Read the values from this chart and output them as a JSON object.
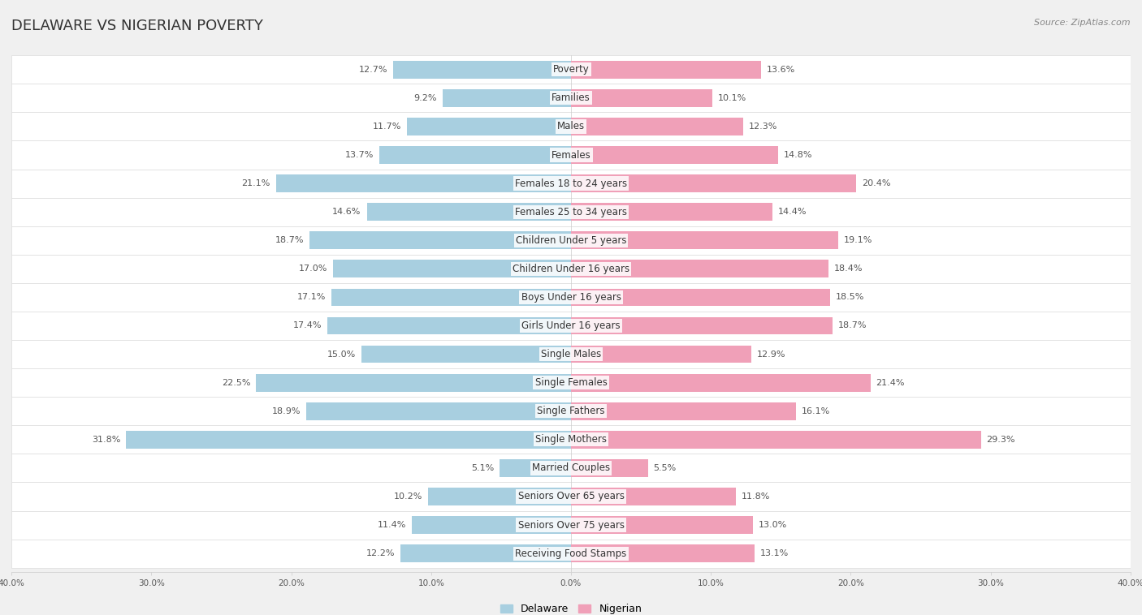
{
  "title": "DELAWARE VS NIGERIAN POVERTY",
  "source": "Source: ZipAtlas.com",
  "categories": [
    "Poverty",
    "Families",
    "Males",
    "Females",
    "Females 18 to 24 years",
    "Females 25 to 34 years",
    "Children Under 5 years",
    "Children Under 16 years",
    "Boys Under 16 years",
    "Girls Under 16 years",
    "Single Males",
    "Single Females",
    "Single Fathers",
    "Single Mothers",
    "Married Couples",
    "Seniors Over 65 years",
    "Seniors Over 75 years",
    "Receiving Food Stamps"
  ],
  "delaware": [
    12.7,
    9.2,
    11.7,
    13.7,
    21.1,
    14.6,
    18.7,
    17.0,
    17.1,
    17.4,
    15.0,
    22.5,
    18.9,
    31.8,
    5.1,
    10.2,
    11.4,
    12.2
  ],
  "nigerian": [
    13.6,
    10.1,
    12.3,
    14.8,
    20.4,
    14.4,
    19.1,
    18.4,
    18.5,
    18.7,
    12.9,
    21.4,
    16.1,
    29.3,
    5.5,
    11.8,
    13.0,
    13.1
  ],
  "delaware_color": "#a8cfe0",
  "nigerian_color": "#f0a0b8",
  "axis_max": 40.0,
  "background_color": "#f0f0f0",
  "row_light_color": "#fafafa",
  "row_dark_color": "#ebebeb",
  "title_fontsize": 13,
  "label_fontsize": 8.5,
  "value_fontsize": 8,
  "legend_fontsize": 9,
  "source_fontsize": 8
}
